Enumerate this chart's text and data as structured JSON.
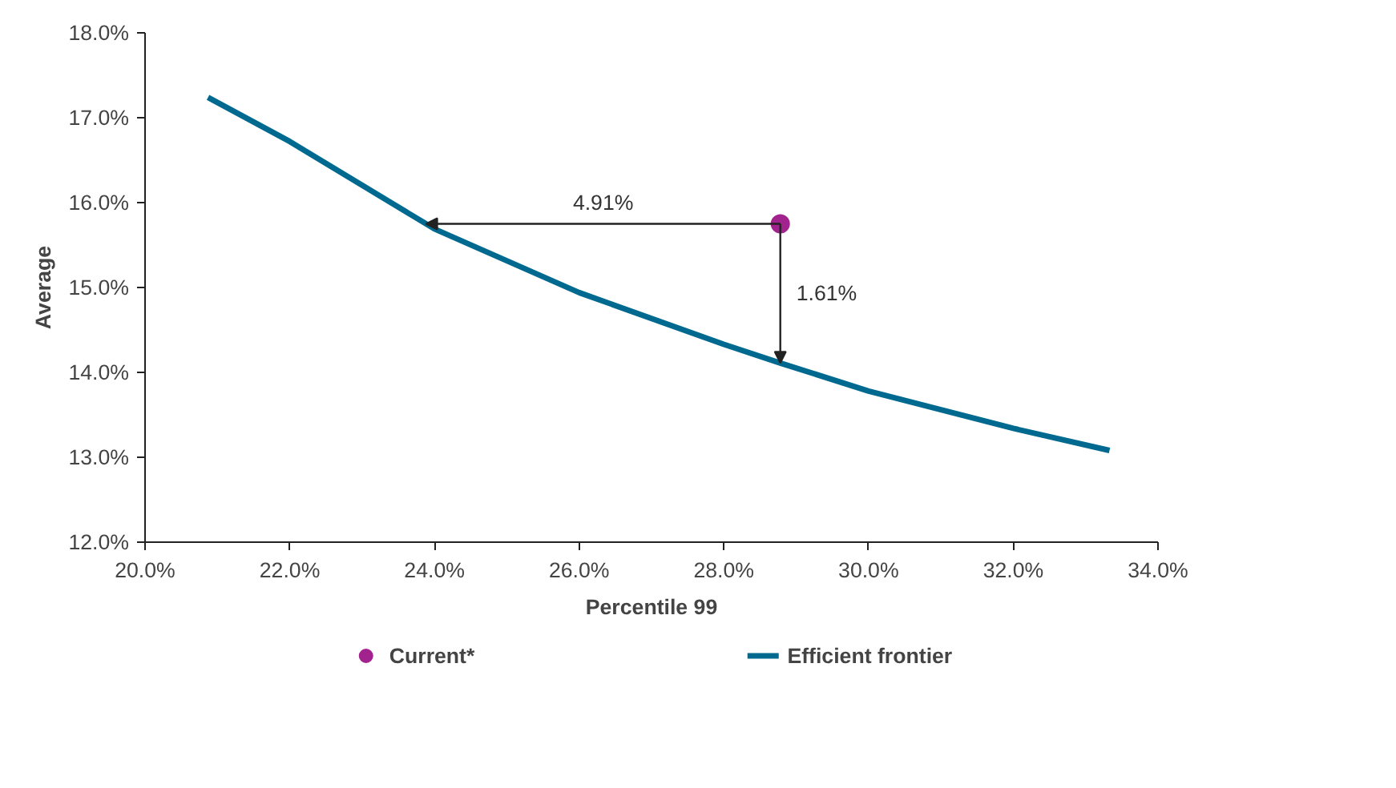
{
  "chart_data": {
    "type": "line",
    "xlabel": "Percentile 99",
    "ylabel": "Average",
    "xlim": [
      20,
      34
    ],
    "ylim": [
      12,
      18
    ],
    "xticks": [
      {
        "value": 20,
        "label": "20.0%"
      },
      {
        "value": 22,
        "label": "22.0%"
      },
      {
        "value": 24,
        "label": "24.0%"
      },
      {
        "value": 26,
        "label": "26.0%"
      },
      {
        "value": 28,
        "label": "28.0%"
      },
      {
        "value": 30,
        "label": "30.0%"
      },
      {
        "value": 32,
        "label": "32.0%"
      },
      {
        "value": 34,
        "label": "34.0%"
      }
    ],
    "yticks": [
      {
        "value": 12,
        "label": "12.0%"
      },
      {
        "value": 13,
        "label": "13.0%"
      },
      {
        "value": 14,
        "label": "14.0%"
      },
      {
        "value": 15,
        "label": "15.0%"
      },
      {
        "value": 16,
        "label": "16.0%"
      },
      {
        "value": 17,
        "label": "17.0%"
      },
      {
        "value": 18,
        "label": "18.0%"
      }
    ],
    "series": [
      {
        "name": "Current*",
        "type": "scatter",
        "color": "#a2238e",
        "marker": "circle",
        "x": [
          28.78
        ],
        "values": [
          15.75
        ]
      },
      {
        "name": "Efficient frontier",
        "color": "#00698f",
        "line_style": "solid",
        "x": [
          20.87,
          22.0,
          24.0,
          26.0,
          28.0,
          28.78,
          30.0,
          32.0,
          33.33
        ],
        "values": [
          17.24,
          16.72,
          15.69,
          14.94,
          14.33,
          14.11,
          13.78,
          13.34,
          13.08
        ]
      }
    ],
    "annotations": [
      "4.91%",
      "1.61%"
    ],
    "legend": "bottom",
    "grid": false
  }
}
